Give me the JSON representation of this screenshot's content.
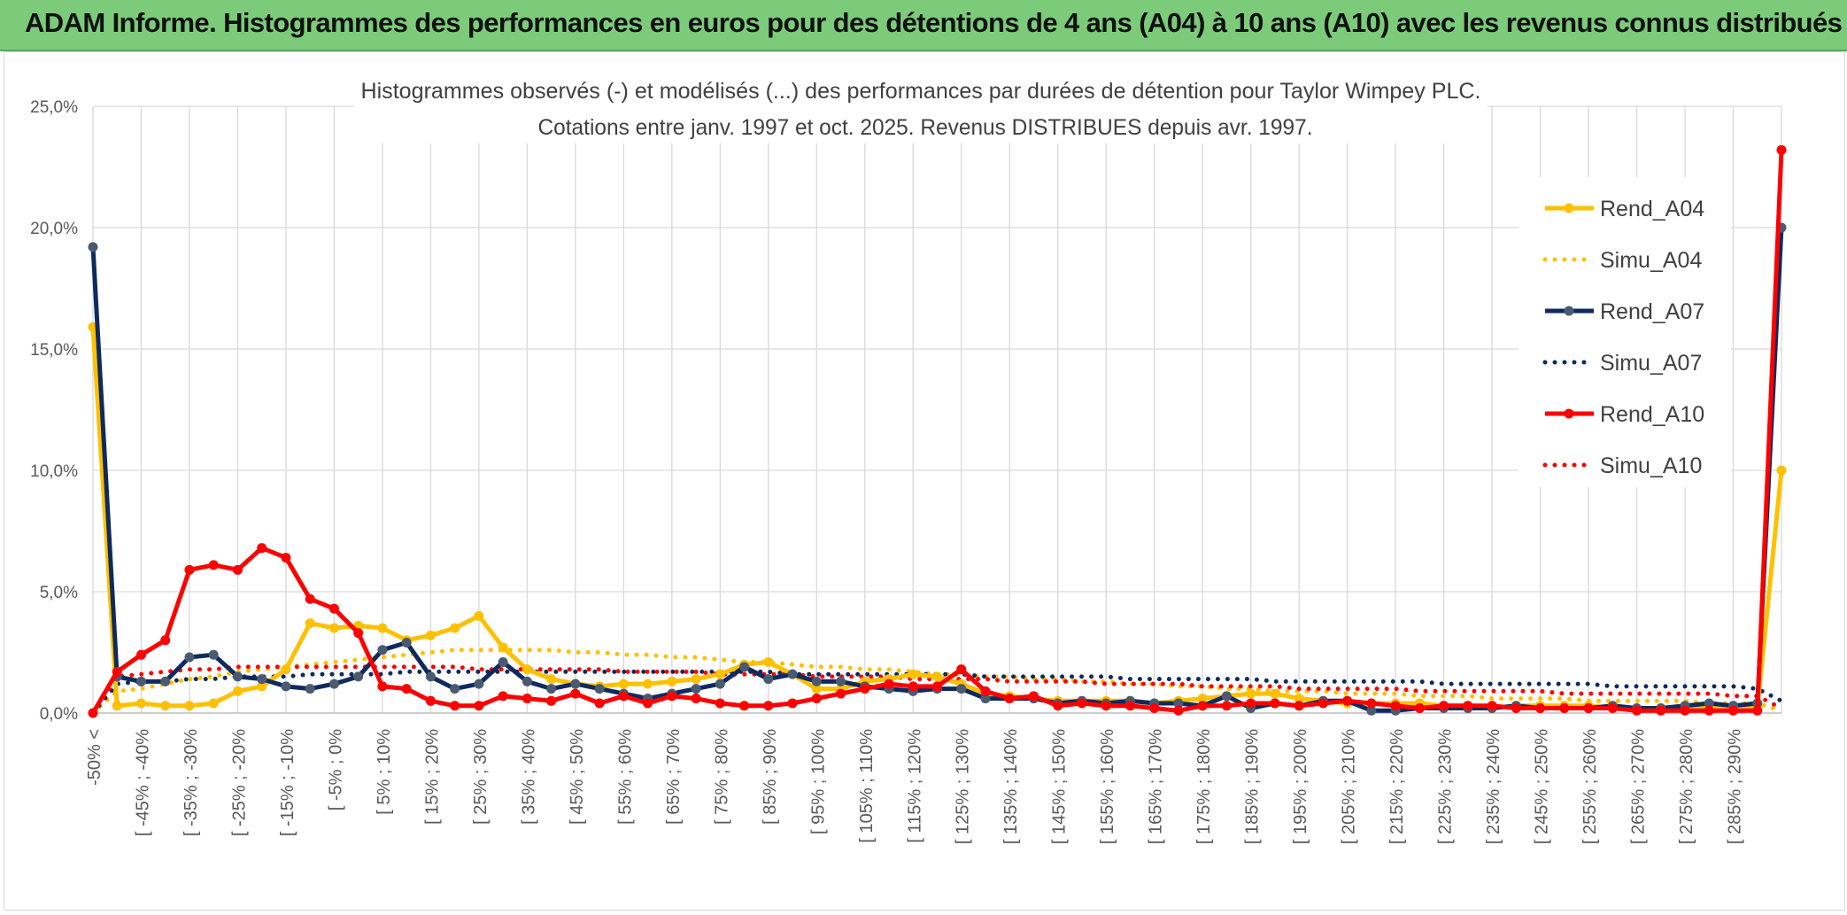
{
  "header": {
    "title": "ADAM Informe. Histogrammes des performances en euros pour des détentions de 4 ans (A04) à 10 ans (A10) avec les revenus connus distribués"
  },
  "chart_data": {
    "type": "line",
    "title": "Histogrammes observés (-) et modélisés (...) des performances par durées de détention pour Taylor Wimpey PLC.",
    "subtitle": "Cotations entre janv. 1997 et oct. 2025. Revenus DISTRIBUES depuis avr. 1997.",
    "xlabel": "",
    "ylabel": "",
    "ylim": [
      0,
      25
    ],
    "yticks": [
      "0,0%",
      "5,0%",
      "10,0%",
      "15,0%",
      "20,0%",
      "25,0%"
    ],
    "grid": true,
    "legend_position": "right",
    "tick_labels": [
      "-50% <",
      "[ -45% ; -40%",
      "[ -35% ; -30%",
      "[ -25% ; -20%",
      "[ -15% ; -10%",
      "[ -5% ; 0%",
      "[ 5% ; 10%",
      "[ 15% ; 20%",
      "[ 25% ; 30%",
      "[ 35% ; 40%",
      "[ 45% ; 50%",
      "[ 55% ; 60%",
      "[ 65% ; 70%",
      "[ 75% ; 80%",
      "[ 85% ; 90%",
      "[ 95% ; 100%",
      "[ 105% ; 110%",
      "[ 115% ; 120%",
      "[ 125% ; 130%",
      "[ 135% ; 140%",
      "[ 145% ; 150%",
      "[ 155% ; 160%",
      "[ 165% ; 170%",
      "[ 175% ; 180%",
      "[ 185% ; 190%",
      "[ 195% ; 200%",
      "[ 205% ; 210%",
      "[ 215% ; 220%",
      "[ 225% ; 230%",
      "[ 235% ; 240%",
      "[ 245% ; 250%",
      "[ 255% ; 260%",
      "[ 265% ; 270%",
      "[ 275% ; 280%",
      "[ 285% ; 290%"
    ],
    "series": [
      {
        "name": "Rend_A04",
        "style": "solid",
        "color": "#ffc000",
        "markers": true,
        "values": [
          15.9,
          0.3,
          0.4,
          0.3,
          0.3,
          0.4,
          0.9,
          1.1,
          1.8,
          3.7,
          3.5,
          3.6,
          3.5,
          3.0,
          3.2,
          3.5,
          4.0,
          2.7,
          1.8,
          1.4,
          1.2,
          1.1,
          1.2,
          1.2,
          1.3,
          1.4,
          1.6,
          2.0,
          2.1,
          1.6,
          1.0,
          1.0,
          1.3,
          1.4,
          1.6,
          1.5,
          1.2,
          0.8,
          0.7,
          0.6,
          0.5,
          0.5,
          0.5,
          0.5,
          0.4,
          0.5,
          0.6,
          0.7,
          0.8,
          0.8,
          0.6,
          0.5,
          0.4,
          0.4,
          0.4,
          0.4,
          0.3,
          0.3,
          0.2,
          0.3,
          0.3,
          0.3,
          0.3,
          0.2,
          0.2,
          0.2,
          0.2,
          0.2,
          0.2,
          0.2,
          10.0
        ]
      },
      {
        "name": "Simu_A04",
        "style": "dotted",
        "color": "#ffc000",
        "markers": false,
        "values": [
          0.0,
          0.9,
          1.0,
          1.2,
          1.4,
          1.5,
          1.7,
          1.8,
          1.9,
          2.0,
          2.1,
          2.2,
          2.3,
          2.4,
          2.5,
          2.6,
          2.6,
          2.6,
          2.6,
          2.6,
          2.5,
          2.5,
          2.4,
          2.4,
          2.3,
          2.3,
          2.2,
          2.1,
          2.1,
          2.0,
          1.9,
          1.9,
          1.8,
          1.8,
          1.7,
          1.6,
          1.6,
          1.5,
          1.5,
          1.4,
          1.4,
          1.3,
          1.3,
          1.2,
          1.2,
          1.1,
          1.1,
          1.0,
          1.0,
          0.9,
          0.9,
          0.9,
          0.8,
          0.8,
          0.8,
          0.7,
          0.7,
          0.7,
          0.6,
          0.6,
          0.6,
          0.6,
          0.5,
          0.5,
          0.5,
          0.5,
          0.5,
          0.4,
          0.4,
          0.4,
          0.1
        ]
      },
      {
        "name": "Rend_A07",
        "style": "solid",
        "color": "#0e2a5e",
        "markers": true,
        "values": [
          19.2,
          1.5,
          1.3,
          1.3,
          2.3,
          2.4,
          1.5,
          1.4,
          1.1,
          1.0,
          1.2,
          1.5,
          2.6,
          2.9,
          1.5,
          1.0,
          1.2,
          2.1,
          1.3,
          1.0,
          1.2,
          1.0,
          0.8,
          0.6,
          0.8,
          1.0,
          1.2,
          1.9,
          1.4,
          1.6,
          1.3,
          1.3,
          1.1,
          1.0,
          0.9,
          1.0,
          1.0,
          0.6,
          0.6,
          0.6,
          0.4,
          0.5,
          0.4,
          0.5,
          0.4,
          0.4,
          0.3,
          0.7,
          0.2,
          0.4,
          0.3,
          0.5,
          0.5,
          0.1,
          0.1,
          0.2,
          0.2,
          0.2,
          0.2,
          0.3,
          0.2,
          0.2,
          0.2,
          0.3,
          0.2,
          0.2,
          0.3,
          0.4,
          0.3,
          0.4,
          20.0
        ]
      },
      {
        "name": "Simu_A07",
        "style": "dotted",
        "color": "#0e2a5e",
        "markers": false,
        "values": [
          0.0,
          1.2,
          1.3,
          1.3,
          1.4,
          1.4,
          1.5,
          1.5,
          1.5,
          1.6,
          1.6,
          1.6,
          1.6,
          1.7,
          1.7,
          1.7,
          1.7,
          1.7,
          1.7,
          1.7,
          1.7,
          1.7,
          1.7,
          1.7,
          1.7,
          1.7,
          1.7,
          1.7,
          1.7,
          1.6,
          1.6,
          1.6,
          1.6,
          1.6,
          1.6,
          1.6,
          1.6,
          1.5,
          1.5,
          1.5,
          1.5,
          1.5,
          1.5,
          1.4,
          1.4,
          1.4,
          1.4,
          1.4,
          1.4,
          1.3,
          1.3,
          1.3,
          1.3,
          1.3,
          1.3,
          1.3,
          1.2,
          1.2,
          1.2,
          1.2,
          1.2,
          1.2,
          1.2,
          1.1,
          1.1,
          1.1,
          1.1,
          1.1,
          1.1,
          1.0,
          0.5
        ]
      },
      {
        "name": "Rend_A10",
        "style": "solid",
        "color": "#ff0000",
        "markers": true,
        "values": [
          0.0,
          1.7,
          2.4,
          3.0,
          5.9,
          6.1,
          5.9,
          6.8,
          6.4,
          4.7,
          4.3,
          3.3,
          1.1,
          1.0,
          0.5,
          0.3,
          0.3,
          0.7,
          0.6,
          0.5,
          0.8,
          0.4,
          0.7,
          0.4,
          0.7,
          0.6,
          0.4,
          0.3,
          0.3,
          0.4,
          0.6,
          0.8,
          1.0,
          1.2,
          1.1,
          1.1,
          1.8,
          0.9,
          0.6,
          0.7,
          0.3,
          0.4,
          0.3,
          0.3,
          0.2,
          0.1,
          0.3,
          0.3,
          0.4,
          0.4,
          0.3,
          0.4,
          0.5,
          0.4,
          0.3,
          0.2,
          0.3,
          0.3,
          0.3,
          0.2,
          0.2,
          0.2,
          0.2,
          0.2,
          0.1,
          0.1,
          0.1,
          0.1,
          0.1,
          0.1,
          23.2
        ]
      },
      {
        "name": "Simu_A10",
        "style": "dotted",
        "color": "#ff0000",
        "markers": false,
        "values": [
          0.0,
          1.5,
          1.6,
          1.7,
          1.8,
          1.8,
          1.9,
          1.9,
          1.9,
          1.9,
          1.9,
          1.9,
          1.9,
          1.9,
          1.9,
          1.9,
          1.8,
          1.8,
          1.8,
          1.8,
          1.8,
          1.8,
          1.7,
          1.7,
          1.7,
          1.7,
          1.6,
          1.6,
          1.6,
          1.6,
          1.5,
          1.5,
          1.5,
          1.5,
          1.4,
          1.4,
          1.4,
          1.4,
          1.3,
          1.3,
          1.3,
          1.3,
          1.2,
          1.2,
          1.2,
          1.2,
          1.1,
          1.1,
          1.1,
          1.1,
          1.0,
          1.0,
          1.0,
          1.0,
          1.0,
          0.9,
          0.9,
          0.9,
          0.9,
          0.9,
          0.9,
          0.8,
          0.8,
          0.8,
          0.8,
          0.8,
          0.8,
          0.8,
          0.7,
          0.7,
          0.2
        ]
      }
    ]
  }
}
